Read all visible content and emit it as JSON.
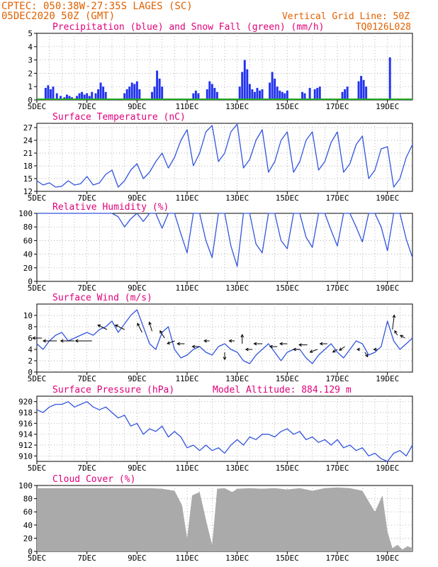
{
  "header": {
    "line1": "CPTEC:   050:38W-27:35S  LAGES (SC)",
    "line2": "05DEC2020 50Z (GMT)",
    "right1": "Vertical Grid Line: 50Z",
    "right2": "TQ0126L028",
    "title_color": "#e06000"
  },
  "colors": {
    "panel_title": "#e0007a",
    "line": "#3355dd",
    "precip": "#2233ee",
    "snow": "#22aa22",
    "cloud": "#aaaaaa",
    "arrow": "#000000"
  },
  "x_axis": {
    "ticks": [
      "5DEC",
      "7DEC",
      "9DEC",
      "11DEC",
      "13DEC",
      "15DEC",
      "17DEC",
      "19DEC"
    ],
    "tick_days": [
      0,
      2,
      4,
      6,
      8,
      10,
      12,
      14
    ],
    "range_days": [
      0,
      15
    ]
  },
  "chart_data": [
    {
      "type": "bar",
      "title": "Precipitation (blue) and Snow Fall (green) (mm/h)",
      "ylim": [
        0,
        5
      ],
      "yticks": [
        "0",
        "1",
        "2",
        "3",
        "4",
        "5"
      ],
      "series": [
        {
          "name": "Precipitation",
          "color": "#2233ee",
          "points": [
            [
              0.35,
              0.9
            ],
            [
              0.45,
              1.1
            ],
            [
              0.55,
              0.8
            ],
            [
              0.65,
              1.0
            ],
            [
              0.8,
              0.5
            ],
            [
              0.95,
              0.3
            ],
            [
              1.1,
              0.2
            ],
            [
              1.2,
              0.4
            ],
            [
              1.3,
              0.3
            ],
            [
              1.4,
              0.2
            ],
            [
              1.6,
              0.3
            ],
            [
              1.7,
              0.5
            ],
            [
              1.8,
              0.6
            ],
            [
              1.9,
              0.4
            ],
            [
              2.0,
              0.5
            ],
            [
              2.1,
              0.3
            ],
            [
              2.2,
              0.6
            ],
            [
              2.35,
              0.5
            ],
            [
              2.45,
              0.8
            ],
            [
              2.55,
              1.3
            ],
            [
              2.65,
              1.0
            ],
            [
              2.75,
              0.6
            ],
            [
              3.5,
              0.5
            ],
            [
              3.6,
              0.8
            ],
            [
              3.7,
              1.0
            ],
            [
              3.8,
              1.3
            ],
            [
              3.9,
              1.2
            ],
            [
              4.0,
              1.4
            ],
            [
              4.1,
              0.8
            ],
            [
              4.6,
              0.6
            ],
            [
              4.7,
              1.0
            ],
            [
              4.8,
              2.2
            ],
            [
              4.9,
              1.6
            ],
            [
              5.0,
              1.0
            ],
            [
              6.25,
              0.5
            ],
            [
              6.35,
              0.7
            ],
            [
              6.45,
              0.5
            ],
            [
              6.8,
              0.8
            ],
            [
              6.9,
              1.4
            ],
            [
              7.0,
              1.2
            ],
            [
              7.1,
              0.9
            ],
            [
              7.2,
              0.6
            ],
            [
              8.1,
              1.0
            ],
            [
              8.2,
              2.1
            ],
            [
              8.3,
              3.0
            ],
            [
              8.4,
              2.3
            ],
            [
              8.5,
              1.2
            ],
            [
              8.6,
              0.8
            ],
            [
              8.7,
              0.6
            ],
            [
              8.8,
              0.9
            ],
            [
              8.9,
              0.7
            ],
            [
              9.0,
              0.8
            ],
            [
              9.3,
              1.3
            ],
            [
              9.4,
              2.1
            ],
            [
              9.5,
              1.6
            ],
            [
              9.6,
              1.0
            ],
            [
              9.7,
              0.7
            ],
            [
              9.8,
              0.6
            ],
            [
              9.9,
              0.5
            ],
            [
              10.0,
              0.7
            ],
            [
              10.6,
              0.6
            ],
            [
              10.7,
              0.5
            ],
            [
              10.9,
              0.9
            ],
            [
              11.1,
              0.8
            ],
            [
              11.2,
              0.9
            ],
            [
              11.3,
              1.0
            ],
            [
              12.2,
              0.6
            ],
            [
              12.3,
              0.8
            ],
            [
              12.4,
              1.0
            ],
            [
              12.85,
              1.4
            ],
            [
              12.95,
              1.8
            ],
            [
              13.05,
              1.5
            ],
            [
              13.15,
              1.0
            ],
            [
              14.1,
              3.2
            ]
          ]
        },
        {
          "name": "Snow Fall",
          "color": "#22aa22",
          "points": []
        }
      ]
    },
    {
      "type": "line",
      "title": "Surface Temperature (nC)",
      "ylim": [
        12,
        28
      ],
      "yticks": [
        "12",
        "15",
        "18",
        "21",
        "24",
        "27"
      ],
      "ytick_values": [
        12,
        15,
        18,
        21,
        24,
        27
      ],
      "x": [
        0,
        0.25,
        0.5,
        0.75,
        1,
        1.25,
        1.5,
        1.75,
        2,
        2.25,
        2.5,
        2.75,
        3,
        3.25,
        3.5,
        3.75,
        4,
        4.25,
        4.5,
        4.75,
        5,
        5.25,
        5.5,
        5.75,
        6,
        6.25,
        6.5,
        6.75,
        7,
        7.25,
        7.5,
        7.75,
        8,
        8.25,
        8.5,
        8.75,
        9,
        9.25,
        9.5,
        9.75,
        10,
        10.25,
        10.5,
        10.75,
        11,
        11.25,
        11.5,
        11.75,
        12,
        12.25,
        12.5,
        12.75,
        13,
        13.25,
        13.5,
        13.75,
        14,
        14.25,
        14.5,
        14.75,
        15
      ],
      "y": [
        14.5,
        13.5,
        14,
        13,
        13.2,
        14.5,
        13.5,
        13.8,
        15.5,
        13.5,
        14,
        16,
        17,
        13,
        14.5,
        17,
        18.5,
        15,
        16.5,
        19,
        21,
        17.5,
        20,
        24,
        26.5,
        18,
        21,
        26,
        27.5,
        19,
        21,
        26,
        27.8,
        17.5,
        19.5,
        24,
        26.5,
        16.5,
        19,
        24,
        26,
        16.5,
        19,
        24,
        26,
        17,
        19,
        23.5,
        26,
        16.5,
        18.5,
        23,
        25,
        15,
        17,
        22,
        22.5,
        13,
        15,
        20,
        23
      ]
    },
    {
      "type": "line",
      "title": "Relative Humidity (%)",
      "ylim": [
        0,
        100
      ],
      "yticks": [
        "0",
        "20",
        "40",
        "60",
        "80",
        "100"
      ],
      "ytick_values": [
        0,
        20,
        40,
        60,
        80,
        100
      ],
      "x": [
        0,
        0.25,
        0.5,
        0.75,
        1,
        1.25,
        1.5,
        1.75,
        2,
        2.25,
        2.5,
        2.75,
        3,
        3.25,
        3.5,
        3.75,
        4,
        4.25,
        4.5,
        4.75,
        5,
        5.25,
        5.5,
        5.75,
        6,
        6.25,
        6.5,
        6.75,
        7,
        7.25,
        7.5,
        7.75,
        8,
        8.25,
        8.5,
        8.75,
        9,
        9.25,
        9.5,
        9.75,
        10,
        10.25,
        10.5,
        10.75,
        11,
        11.25,
        11.5,
        11.75,
        12,
        12.25,
        12.5,
        12.75,
        13,
        13.25,
        13.5,
        13.75,
        14,
        14.25,
        14.5,
        14.75,
        15
      ],
      "y": [
        100,
        100,
        100,
        100,
        100,
        100,
        100,
        100,
        100,
        100,
        100,
        100,
        100,
        95,
        80,
        92,
        100,
        88,
        100,
        100,
        78,
        100,
        100,
        70,
        42,
        100,
        100,
        60,
        35,
        100,
        100,
        52,
        22,
        100,
        100,
        55,
        42,
        100,
        100,
        60,
        48,
        100,
        100,
        65,
        50,
        100,
        100,
        75,
        52,
        100,
        100,
        80,
        58,
        100,
        100,
        80,
        45,
        100,
        100,
        62,
        35
      ]
    },
    {
      "type": "line",
      "title": "Surface Wind (m/s)",
      "ylim": [
        0,
        12
      ],
      "yticks": [
        "0",
        "2",
        "4",
        "6",
        "8",
        "10"
      ],
      "ytick_values": [
        0,
        2,
        4,
        6,
        8,
        10
      ],
      "x": [
        0,
        0.25,
        0.5,
        0.75,
        1,
        1.25,
        1.5,
        1.75,
        2,
        2.25,
        2.5,
        2.75,
        3,
        3.25,
        3.5,
        3.75,
        4,
        4.25,
        4.5,
        4.75,
        5,
        5.25,
        5.5,
        5.75,
        6,
        6.25,
        6.5,
        6.75,
        7,
        7.25,
        7.5,
        7.75,
        8,
        8.25,
        8.5,
        8.75,
        9,
        9.25,
        9.5,
        9.75,
        10,
        10.25,
        10.5,
        10.75,
        11,
        11.25,
        11.5,
        11.75,
        12,
        12.25,
        12.5,
        12.75,
        13,
        13.25,
        13.5,
        13.75,
        14,
        14.25,
        14.5,
        14.75,
        15
      ],
      "y": [
        5,
        4,
        5.5,
        6.5,
        7,
        5.5,
        6,
        6.5,
        7,
        6.5,
        7.5,
        8,
        9,
        7,
        8.5,
        10,
        11,
        8,
        5,
        4,
        7,
        8,
        4,
        2.5,
        3,
        4,
        4.5,
        3.5,
        3,
        4.5,
        5,
        4,
        3.5,
        2,
        1.5,
        3,
        4,
        5,
        3.5,
        2,
        3.5,
        4,
        4,
        2.5,
        1.5,
        3,
        4,
        5,
        3.5,
        2.5,
        4,
        5.5,
        5,
        3,
        3.5,
        4.5,
        9,
        5.5,
        4,
        5,
        6
      ],
      "arrows": [
        {
          "x": 0.2,
          "y": 6,
          "dx": -1,
          "dy": 0
        },
        {
          "x": 0.8,
          "y": 5.5,
          "dx": -1.5,
          "dy": 0
        },
        {
          "x": 1.5,
          "y": 5.5,
          "dx": -1.5,
          "dy": 0
        },
        {
          "x": 2.2,
          "y": 5.5,
          "dx": -1.8,
          "dy": 0
        },
        {
          "x": 2.8,
          "y": 7.5,
          "dx": -1,
          "dy": 0.5
        },
        {
          "x": 3.5,
          "y": 7.5,
          "dx": -1,
          "dy": 0.5
        },
        {
          "x": 4.2,
          "y": 7,
          "dx": -0.5,
          "dy": 1
        },
        {
          "x": 4.6,
          "y": 7.2,
          "dx": -0.3,
          "dy": 1
        },
        {
          "x": 5.1,
          "y": 6,
          "dx": -0.5,
          "dy": 0.8
        },
        {
          "x": 5.5,
          "y": 5.5,
          "dx": -0.8,
          "dy": -0.3
        },
        {
          "x": 5.9,
          "y": 5,
          "dx": -0.8,
          "dy": 0
        },
        {
          "x": 6.5,
          "y": 4.5,
          "dx": -0.8,
          "dy": 0
        },
        {
          "x": 6.9,
          "y": 5.5,
          "dx": -0.6,
          "dy": 0
        },
        {
          "x": 7.5,
          "y": 3.5,
          "dx": 0,
          "dy": -0.8
        },
        {
          "x": 7.9,
          "y": 5.5,
          "dx": -0.6,
          "dy": 0
        },
        {
          "x": 8.2,
          "y": 5,
          "dx": 0,
          "dy": 1
        },
        {
          "x": 8.6,
          "y": 4,
          "dx": -0.7,
          "dy": 0
        },
        {
          "x": 9.0,
          "y": 5,
          "dx": -0.9,
          "dy": 0
        },
        {
          "x": 9.6,
          "y": 4.5,
          "dx": -0.8,
          "dy": 0
        },
        {
          "x": 10.0,
          "y": 5,
          "dx": -0.8,
          "dy": 0
        },
        {
          "x": 10.5,
          "y": 4,
          "dx": -0.7,
          "dy": 0
        },
        {
          "x": 10.8,
          "y": 4.8,
          "dx": -0.9,
          "dy": 0
        },
        {
          "x": 11.2,
          "y": 4,
          "dx": -0.8,
          "dy": -0.3
        },
        {
          "x": 11.6,
          "y": 5,
          "dx": -0.8,
          "dy": 0
        },
        {
          "x": 12.0,
          "y": 4,
          "dx": -0.5,
          "dy": -0.3
        },
        {
          "x": 12.3,
          "y": 4.5,
          "dx": -0.6,
          "dy": -0.4
        },
        {
          "x": 12.9,
          "y": 4,
          "dx": -0.3,
          "dy": 0
        },
        {
          "x": 13.1,
          "y": 3.5,
          "dx": 0.3,
          "dy": -0.5
        },
        {
          "x": 13.6,
          "y": 4,
          "dx": -0.4,
          "dy": 0
        },
        {
          "x": 14.2,
          "y": 7.5,
          "dx": 0.2,
          "dy": 1.6
        },
        {
          "x": 14.4,
          "y": 6.5,
          "dx": -0.3,
          "dy": 0.5
        },
        {
          "x": 14.7,
          "y": 6,
          "dx": -0.5,
          "dy": 0.3
        }
      ]
    },
    {
      "type": "line",
      "title": "Surface Pressure (hPa)",
      "annotation": "Model Altitude: 884.129 m",
      "ylim": [
        909,
        921
      ],
      "yticks": [
        "910",
        "912",
        "914",
        "916",
        "918",
        "920"
      ],
      "ytick_values": [
        910,
        912,
        914,
        916,
        918,
        920
      ],
      "x": [
        0,
        0.25,
        0.5,
        0.75,
        1,
        1.25,
        1.5,
        1.75,
        2,
        2.25,
        2.5,
        2.75,
        3,
        3.25,
        3.5,
        3.75,
        4,
        4.25,
        4.5,
        4.75,
        5,
        5.25,
        5.5,
        5.75,
        6,
        6.25,
        6.5,
        6.75,
        7,
        7.25,
        7.5,
        7.75,
        8,
        8.25,
        8.5,
        8.75,
        9,
        9.25,
        9.5,
        9.75,
        10,
        10.25,
        10.5,
        10.75,
        11,
        11.25,
        11.5,
        11.75,
        12,
        12.25,
        12.5,
        12.75,
        13,
        13.25,
        13.5,
        13.75,
        14,
        14.25,
        14.5,
        14.75,
        15
      ],
      "y": [
        918.5,
        918,
        919,
        919.5,
        919.5,
        920,
        919,
        919.5,
        920,
        919,
        918.5,
        919,
        918,
        917,
        917.5,
        915.5,
        916,
        914,
        915,
        914.5,
        915.5,
        913.5,
        914.5,
        913.5,
        911.5,
        912,
        911,
        912,
        911,
        911.5,
        910.5,
        912,
        913,
        912,
        913.5,
        913,
        914,
        914,
        913.5,
        914.5,
        915,
        914,
        914.5,
        913,
        913.5,
        912.5,
        913,
        912,
        913,
        911.5,
        912,
        911,
        911.5,
        910,
        910.5,
        909.5,
        909,
        910.5,
        911,
        910,
        912
      ]
    },
    {
      "type": "area",
      "title": "Cloud Cover (%)",
      "ylim": [
        0,
        100
      ],
      "yticks": [
        "0",
        "20",
        "40",
        "60",
        "80",
        "100"
      ],
      "ytick_values": [
        0,
        20,
        40,
        60,
        80,
        100
      ],
      "x": [
        0,
        0.5,
        1,
        1.5,
        2,
        2.5,
        3,
        3.5,
        4,
        4.5,
        5,
        5.5,
        5.8,
        6,
        6.2,
        6.5,
        6.8,
        7,
        7.2,
        7.5,
        7.8,
        8,
        8.5,
        9,
        9.5,
        10,
        10.5,
        11,
        11.5,
        12,
        12.5,
        13,
        13.5,
        13.8,
        14,
        14.2,
        14.4,
        14.6,
        14.8,
        15
      ],
      "y": [
        96,
        96,
        96,
        96,
        96,
        96,
        96,
        96,
        96,
        96,
        95,
        92,
        70,
        20,
        85,
        90,
        40,
        10,
        95,
        96,
        90,
        95,
        96,
        95,
        96,
        94,
        96,
        92,
        96,
        97,
        96,
        92,
        60,
        85,
        30,
        5,
        10,
        3,
        8,
        5
      ]
    }
  ]
}
